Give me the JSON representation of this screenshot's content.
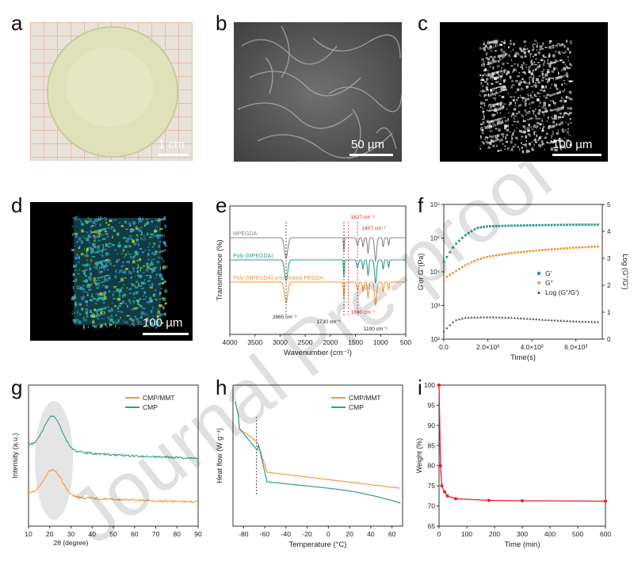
{
  "panels": {
    "a": {
      "label": "a",
      "scale": "1 cm"
    },
    "b": {
      "label": "b",
      "scale": "50 µm"
    },
    "c": {
      "label": "c",
      "scale": "100 µm"
    },
    "d": {
      "label": "d",
      "scale": "100 µm"
    },
    "e": {
      "label": "e"
    },
    "f": {
      "label": "f"
    },
    "g": {
      "label": "g"
    },
    "h": {
      "label": "h"
    },
    "i": {
      "label": "i"
    }
  },
  "watermark": "Journal Pre-proof",
  "chart_data": [
    {
      "panel": "e",
      "type": "line",
      "xlabel": "Wavenumber (cm⁻¹)",
      "ylabel": "Transmittance (%)",
      "xlim": [
        4000,
        500
      ],
      "xticks": [
        "4000",
        "3500",
        "3000",
        "2500",
        "2000",
        "1500",
        "1000",
        "500"
      ],
      "series": [
        {
          "name": "MPEGDA",
          "color": "#8a8a8a"
        },
        {
          "name": "Poly (MPEGDA)",
          "color": "#2f9c8c"
        },
        {
          "name": "Poly (MPEGDA) crosslinked PEGDA",
          "color": "#f29a3a"
        }
      ],
      "annotations": [
        "2865 cm⁻¹",
        "1627 cm⁻¹",
        "1407 cm⁻¹",
        "1730 cm⁻¹",
        "1640 cm⁻¹",
        "1100 cm⁻¹"
      ]
    },
    {
      "panel": "f",
      "type": "scatter",
      "xlabel": "Time(s)",
      "ylabel": "G'or G''(Pa)",
      "y2label": "Log (G''/G')",
      "xticks": [
        "0.0",
        "2.0×10³",
        "4.0×10³",
        "6.0×10³"
      ],
      "yticks": [
        "10²",
        "10³",
        "10⁴",
        "10⁵",
        "10⁶"
      ],
      "y2ticks": [
        "0",
        "1",
        "2",
        "3",
        "4",
        "5"
      ],
      "series": [
        {
          "name": "G'",
          "color": "#2f9c8c",
          "points": [
            [
              0,
              4.3
            ],
            [
              500,
              4.8
            ],
            [
              1000,
              5.1
            ],
            [
              1500,
              5.3
            ],
            [
              2000,
              5.35
            ],
            [
              3000,
              5.37
            ],
            [
              4000,
              5.38
            ],
            [
              5000,
              5.39
            ],
            [
              6000,
              5.4
            ],
            [
              7000,
              5.4
            ]
          ]
        },
        {
          "name": "G''",
          "color": "#f29a3a",
          "points": [
            [
              0,
              3.8
            ],
            [
              500,
              4.0
            ],
            [
              1000,
              4.2
            ],
            [
              1500,
              4.35
            ],
            [
              2000,
              4.45
            ],
            [
              3000,
              4.55
            ],
            [
              4000,
              4.62
            ],
            [
              5000,
              4.67
            ],
            [
              6000,
              4.72
            ],
            [
              7000,
              4.75
            ]
          ]
        },
        {
          "name": "Log (G''/G')",
          "color": "#555555",
          "points": [
            [
              0,
              0.3
            ],
            [
              500,
              0.7
            ],
            [
              1000,
              0.8
            ],
            [
              2000,
              0.82
            ],
            [
              3000,
              0.8
            ],
            [
              4000,
              0.75
            ],
            [
              5000,
              0.7
            ],
            [
              6000,
              0.66
            ],
            [
              7000,
              0.64
            ]
          ]
        }
      ]
    },
    {
      "panel": "g",
      "type": "line",
      "xlabel": "2θ (degree)",
      "ylabel": "Intensity (a.u.)",
      "xlim": [
        10,
        90
      ],
      "xticks": [
        "10",
        "20",
        "30",
        "40",
        "50",
        "60",
        "70",
        "80",
        "90"
      ],
      "series": [
        {
          "name": "CMP/MMT",
          "color": "#f29a3a"
        },
        {
          "name": "CMP",
          "color": "#2f9c8c"
        }
      ]
    },
    {
      "panel": "h",
      "type": "line",
      "xlabel": "Temperature (°C)",
      "ylabel": "Heat flow (W g⁻¹)",
      "xlim": [
        -90,
        70
      ],
      "xticks": [
        "-80",
        "-60",
        "-40",
        "-20",
        "0",
        "20",
        "40",
        "60"
      ],
      "series": [
        {
          "name": "CMP/MMT",
          "color": "#f29a3a"
        },
        {
          "name": "CMP",
          "color": "#2f9c8c"
        }
      ]
    },
    {
      "panel": "i",
      "type": "line",
      "xlabel": "Time (min)",
      "ylabel": "Weight (%)",
      "xlim": [
        0,
        600
      ],
      "ylim": [
        65,
        100
      ],
      "xticks": [
        "0",
        "100",
        "200",
        "300",
        "400",
        "500",
        "600"
      ],
      "yticks": [
        "65",
        "70",
        "75",
        "80",
        "85",
        "90",
        "95",
        "100"
      ],
      "series": [
        {
          "name": "Weight",
          "color": "#e8202a",
          "x": [
            0,
            5,
            10,
            20,
            30,
            60,
            180,
            300,
            600
          ],
          "y": [
            100,
            80,
            75,
            73.5,
            72.5,
            71.8,
            71.4,
            71.3,
            71.2
          ]
        }
      ]
    }
  ]
}
